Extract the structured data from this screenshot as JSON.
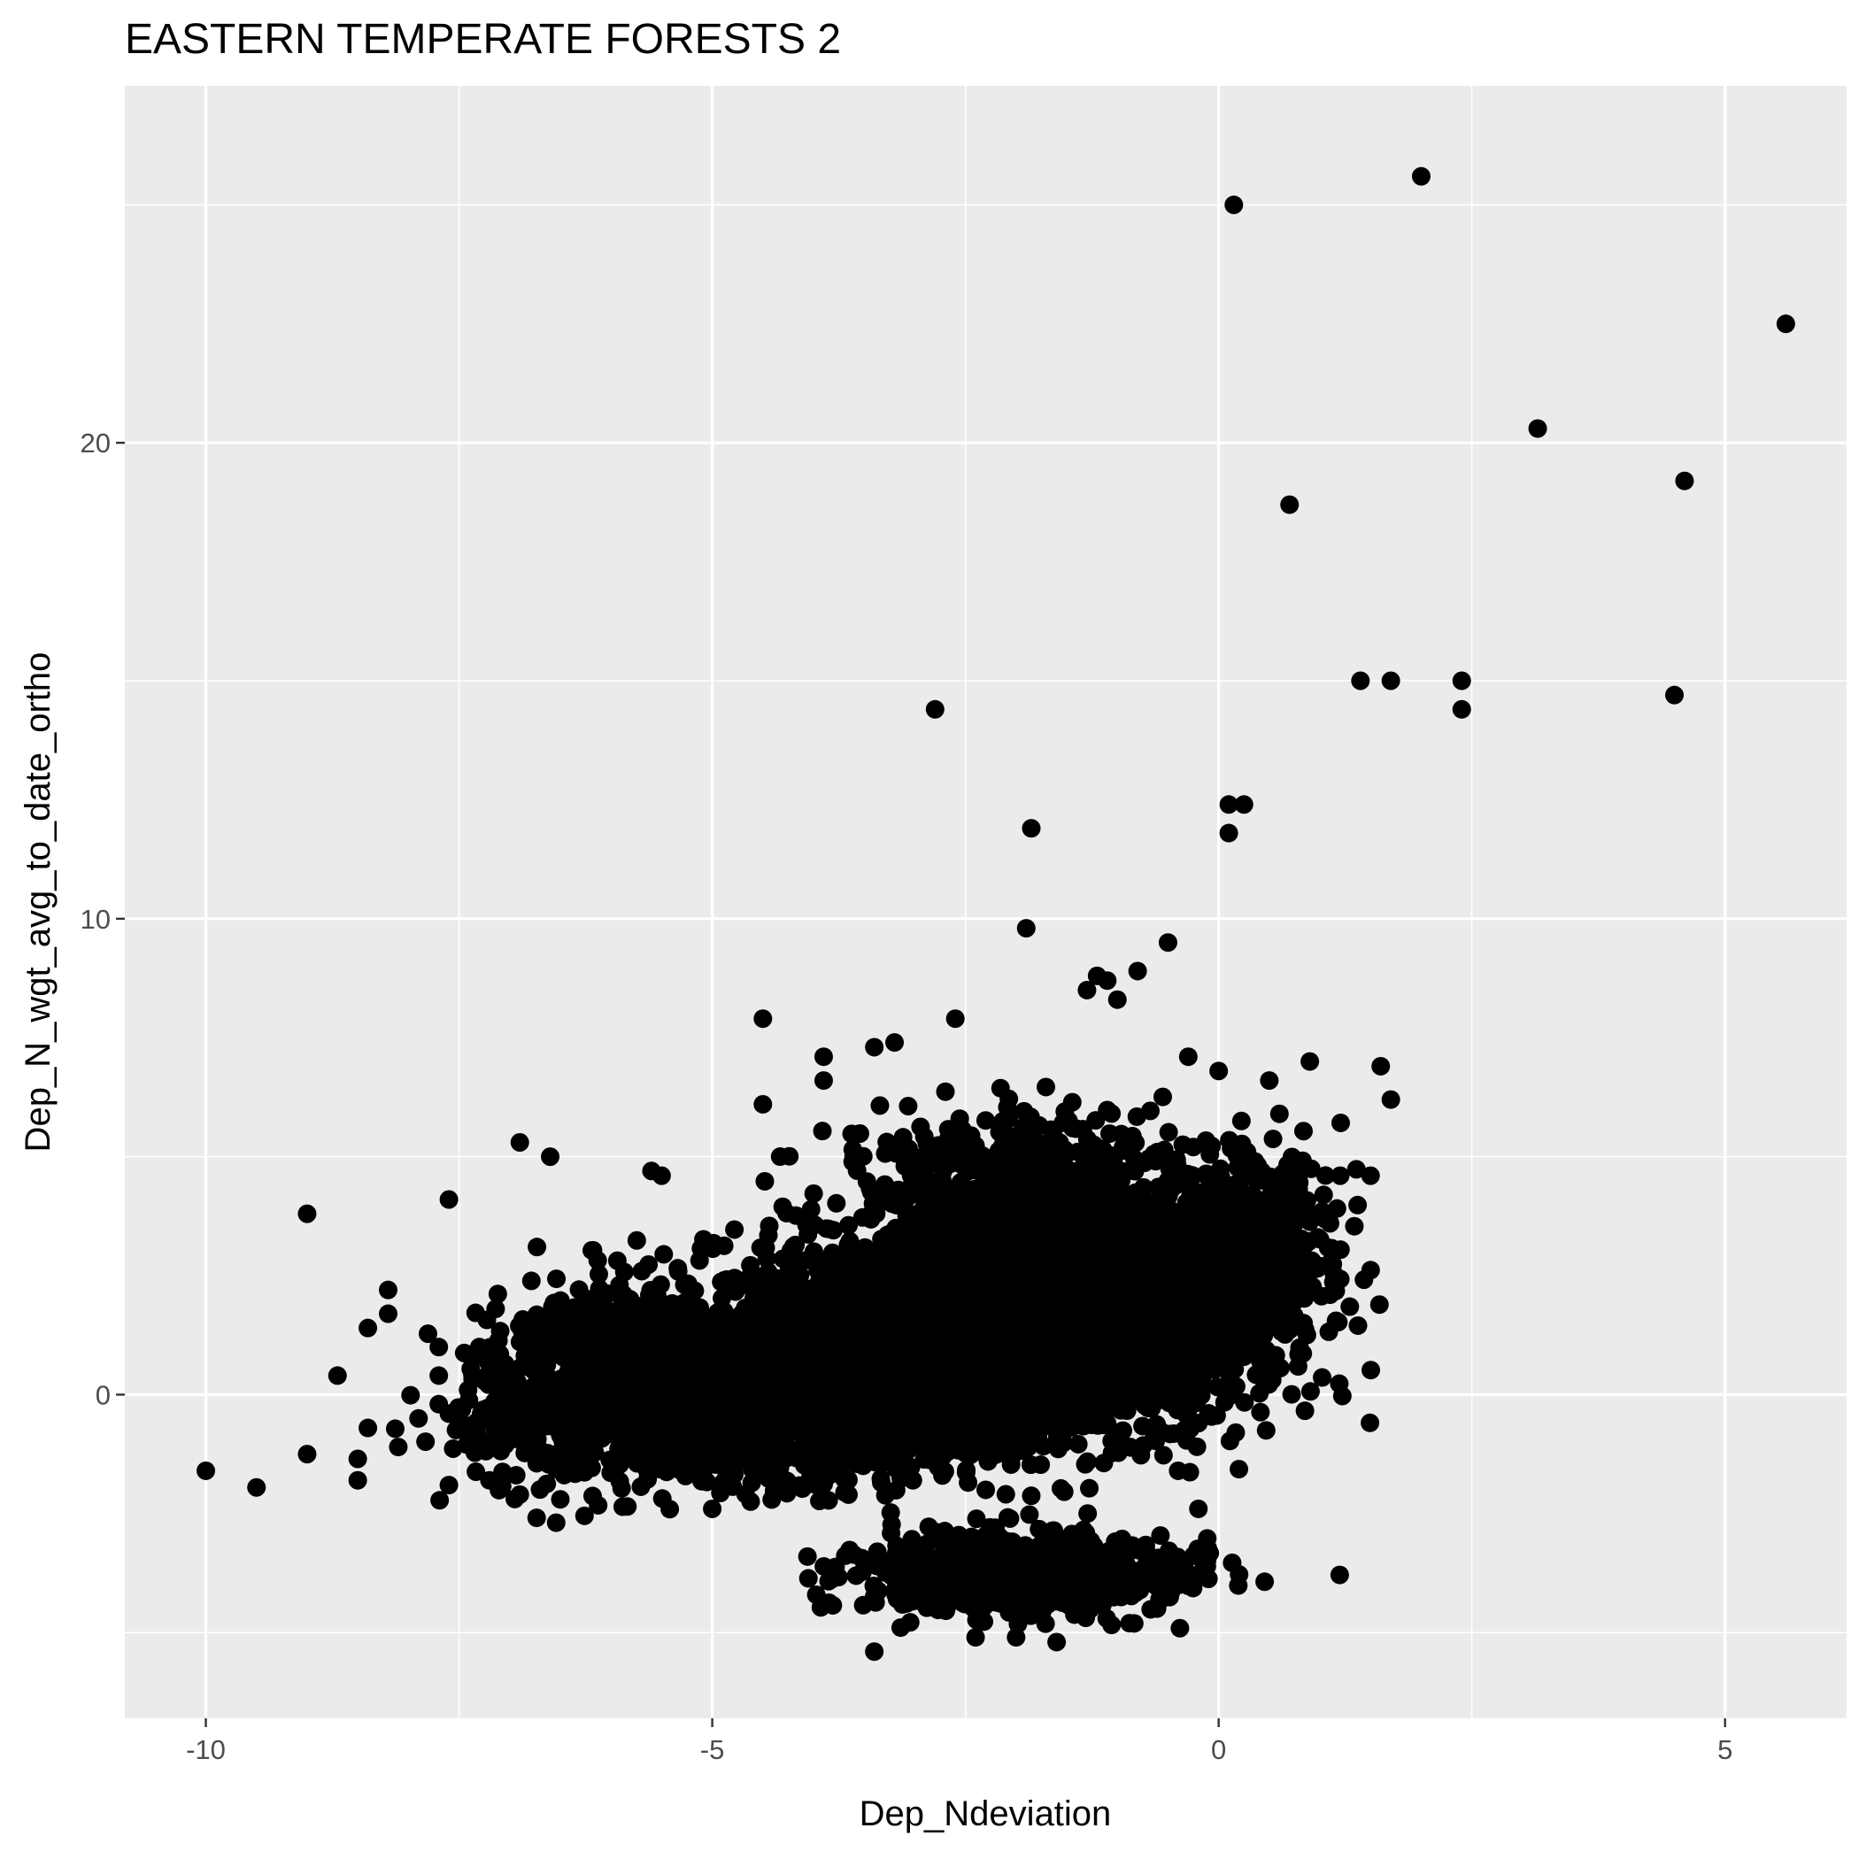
{
  "chart_data": {
    "type": "scatter",
    "title": "EASTERN TEMPERATE FORESTS 2",
    "xlabel": "Dep_Ndeviation",
    "ylabel": "Dep_N_wgt_avg_to_date_ortho",
    "xlim": [
      -10.8,
      6.2
    ],
    "ylim": [
      -6.8,
      27.5
    ],
    "x_ticks": [
      -10,
      -5,
      0,
      5
    ],
    "x_tick_labels": [
      "-10",
      "-5",
      "0",
      "5"
    ],
    "y_ticks": [
      0,
      10,
      20
    ],
    "y_tick_labels": [
      "0",
      "10",
      "20"
    ],
    "x_minor_ticks": [
      -7.5,
      -2.5,
      2.5
    ],
    "y_minor_ticks": [
      -5,
      5,
      15,
      25
    ],
    "grid": true,
    "legend": "none",
    "colors": {
      "panel_background": "#ebebeb",
      "grid": "#ffffff",
      "point": "#000000",
      "tick_label": "#4d4d4d"
    },
    "points": [
      {
        "x": 0.15,
        "y": 25.0
      },
      {
        "x": 2.0,
        "y": 25.6
      },
      {
        "x": 5.6,
        "y": 22.5
      },
      {
        "x": 3.15,
        "y": 20.3
      },
      {
        "x": 4.6,
        "y": 19.2
      },
      {
        "x": 0.7,
        "y": 18.7
      },
      {
        "x": 1.4,
        "y": 15.0
      },
      {
        "x": 1.7,
        "y": 15.0
      },
      {
        "x": 2.4,
        "y": 15.0
      },
      {
        "x": 2.4,
        "y": 14.4
      },
      {
        "x": 4.5,
        "y": 14.7
      },
      {
        "x": -2.8,
        "y": 14.4
      },
      {
        "x": 0.1,
        "y": 12.4
      },
      {
        "x": 0.25,
        "y": 12.4
      },
      {
        "x": 0.1,
        "y": 11.8
      },
      {
        "x": -1.85,
        "y": 11.9
      },
      {
        "x": -1.9,
        "y": 9.8
      },
      {
        "x": -0.5,
        "y": 9.5
      },
      {
        "x": -0.8,
        "y": 8.9
      },
      {
        "x": -1.2,
        "y": 8.8
      },
      {
        "x": -1.1,
        "y": 8.7
      },
      {
        "x": -1.3,
        "y": 8.5
      },
      {
        "x": -1.0,
        "y": 8.3
      },
      {
        "x": -4.5,
        "y": 7.9
      },
      {
        "x": -2.6,
        "y": 7.9
      },
      {
        "x": -3.2,
        "y": 7.4
      },
      {
        "x": -3.4,
        "y": 7.3
      },
      {
        "x": -3.9,
        "y": 7.1
      },
      {
        "x": -0.3,
        "y": 7.1
      },
      {
        "x": -3.9,
        "y": 6.6
      },
      {
        "x": 0.0,
        "y": 6.8
      },
      {
        "x": 0.5,
        "y": 6.6
      },
      {
        "x": 0.9,
        "y": 7.0
      },
      {
        "x": 1.6,
        "y": 6.9
      },
      {
        "x": 1.7,
        "y": 6.2
      },
      {
        "x": -4.5,
        "y": 6.1
      },
      {
        "x": -6.9,
        "y": 5.3
      },
      {
        "x": -6.6,
        "y": 5.0
      },
      {
        "x": -5.6,
        "y": 4.7
      },
      {
        "x": -5.5,
        "y": 4.6
      },
      {
        "x": -9.0,
        "y": 3.8
      },
      {
        "x": -7.6,
        "y": 4.1
      },
      {
        "x": 1.5,
        "y": 4.6
      },
      {
        "x": 1.2,
        "y": 4.6
      },
      {
        "x": 1.1,
        "y": 3.6
      },
      {
        "x": 1.1,
        "y": 2.1
      },
      {
        "x": -8.2,
        "y": 2.2
      },
      {
        "x": -8.2,
        "y": 1.7
      },
      {
        "x": -8.4,
        "y": 1.4
      },
      {
        "x": -7.7,
        "y": 1.0
      },
      {
        "x": -7.3,
        "y": 1.0
      },
      {
        "x": -8.7,
        "y": 0.4
      },
      {
        "x": -7.7,
        "y": 0.4
      },
      {
        "x": -7.7,
        "y": -0.2
      },
      {
        "x": -10.0,
        "y": -1.6
      },
      {
        "x": -9.5,
        "y": -1.95
      },
      {
        "x": -9.0,
        "y": -1.25
      },
      {
        "x": -8.5,
        "y": -1.35
      },
      {
        "x": -8.4,
        "y": -0.7
      },
      {
        "x": -8.5,
        "y": -1.8
      },
      {
        "x": -8.1,
        "y": -1.1
      },
      {
        "x": -7.9,
        "y": -0.5
      },
      {
        "x": -7.6,
        "y": -0.4
      },
      {
        "x": -7.6,
        "y": -1.9
      },
      {
        "x": -7.3,
        "y": -1.1
      },
      {
        "x": -7.2,
        "y": -1.8
      },
      {
        "x": -6.9,
        "y": -2.1
      },
      {
        "x": -6.5,
        "y": -2.2
      },
      {
        "x": -5.0,
        "y": -2.4
      },
      {
        "x": -3.4,
        "y": -5.4
      },
      {
        "x": -2.4,
        "y": -5.1
      },
      {
        "x": -2.0,
        "y": -5.1
      },
      {
        "x": -1.6,
        "y": -5.2
      },
      {
        "x": -2.3,
        "y": -2.0
      },
      {
        "x": -0.2,
        "y": -2.4
      },
      {
        "x": -0.4,
        "y": -1.6
      },
      {
        "x": -0.2,
        "y": -0.6
      },
      {
        "x": 0.1,
        "y": 0.5
      },
      {
        "x": 0.2,
        "y": 1.5
      },
      {
        "x": 0.6,
        "y": 1.8
      },
      {
        "x": 0.8,
        "y": 2.4
      },
      {
        "x": 1.0,
        "y": 2.7
      },
      {
        "x": 0.3,
        "y": 3.6
      },
      {
        "x": 0.6,
        "y": 5.9
      }
    ],
    "dense_clusters": [
      {
        "cx": -2.6,
        "cy": 1.0,
        "sx": 1.3,
        "sy": 1.15,
        "n": 2600,
        "r": 0.35
      },
      {
        "cx": -4.6,
        "cy": 0.1,
        "sx": 1.0,
        "sy": 0.9,
        "n": 1400,
        "r": 0.35
      },
      {
        "cx": -1.5,
        "cy": 2.3,
        "sx": 0.95,
        "sy": 1.1,
        "n": 1300,
        "r": 0.35
      },
      {
        "cx": -0.6,
        "cy": 2.4,
        "sx": 0.55,
        "sy": 0.95,
        "n": 700,
        "r": 0.35
      },
      {
        "cx": -1.9,
        "cy": -3.8,
        "sx": 0.85,
        "sy": 0.4,
        "n": 700,
        "r": 0.35
      },
      {
        "cx": -6.0,
        "cy": 0.4,
        "sx": 0.6,
        "sy": 0.9,
        "n": 420,
        "r": 0.35
      },
      {
        "cx": -1.9,
        "cy": 4.2,
        "sx": 0.85,
        "sy": 0.9,
        "n": 500,
        "r": 0.35
      },
      {
        "cx": 0.4,
        "cy": 3.4,
        "sx": 0.4,
        "sy": 0.9,
        "n": 260,
        "r": 0.35
      },
      {
        "cx": -6.9,
        "cy": -0.4,
        "sx": 0.35,
        "sy": 0.9,
        "n": 110,
        "r": 0.35
      }
    ]
  }
}
